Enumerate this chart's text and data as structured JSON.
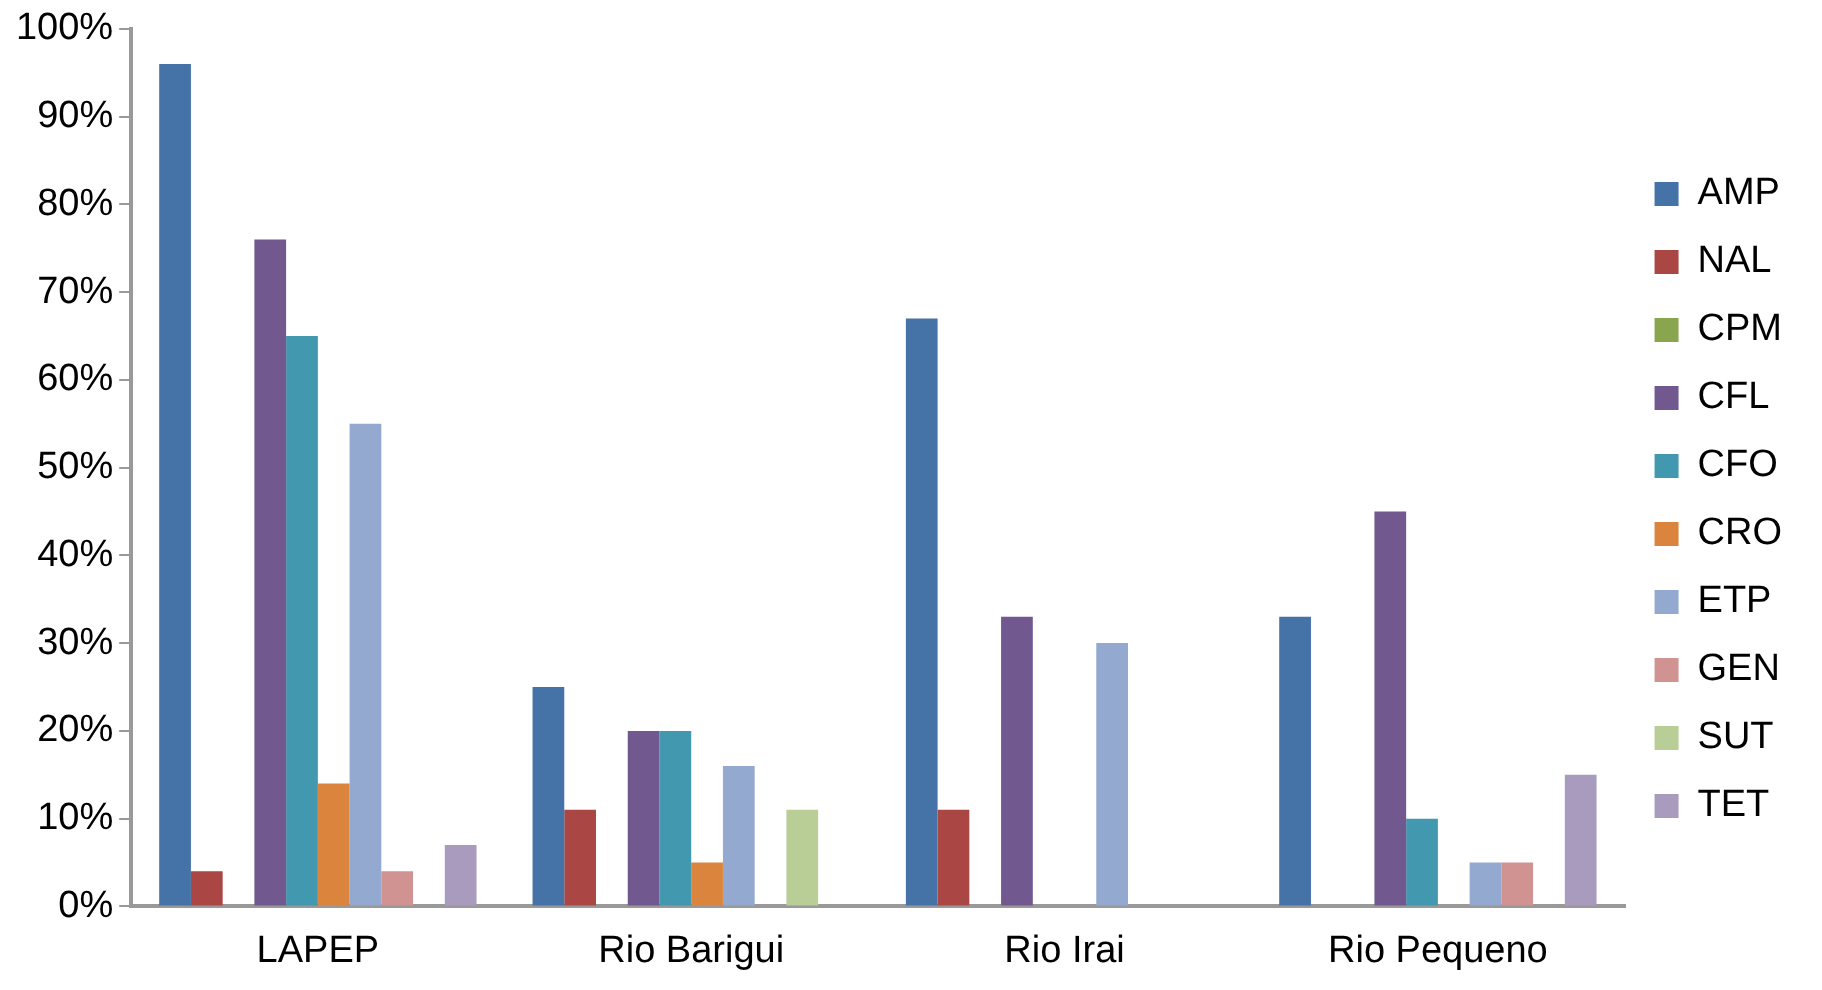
{
  "chart_data": {
    "type": "bar",
    "categories": [
      "LAPEP",
      "Rio Barigui",
      "Rio Irai",
      "Rio Pequeno"
    ],
    "series": [
      {
        "name": "AMP",
        "color": "#4572a7",
        "values": [
          96,
          25,
          67,
          33
        ]
      },
      {
        "name": "NAL",
        "color": "#aa4643",
        "values": [
          4,
          11,
          11,
          0
        ]
      },
      {
        "name": "CPM",
        "color": "#89a54e",
        "values": [
          0,
          0,
          0,
          0
        ]
      },
      {
        "name": "CFL",
        "color": "#71588f",
        "values": [
          76,
          20,
          33,
          45
        ]
      },
      {
        "name": "CFO",
        "color": "#4198af",
        "values": [
          65,
          20,
          0,
          10
        ]
      },
      {
        "name": "CRO",
        "color": "#db843d",
        "values": [
          14,
          5,
          0,
          0
        ]
      },
      {
        "name": "ETP",
        "color": "#93a9cf",
        "values": [
          55,
          16,
          30,
          5
        ]
      },
      {
        "name": "GEN",
        "color": "#d19392",
        "values": [
          4,
          0,
          0,
          5
        ]
      },
      {
        "name": "SUT",
        "color": "#b9cd96",
        "values": [
          0,
          11,
          0,
          0
        ]
      },
      {
        "name": "TET",
        "color": "#a99bbd",
        "values": [
          7,
          0,
          0,
          15
        ]
      }
    ],
    "ylim": [
      0,
      100
    ],
    "yticks": [
      {
        "value": 0,
        "label": "0%"
      },
      {
        "value": 10,
        "label": "10%"
      },
      {
        "value": 20,
        "label": "20%"
      },
      {
        "value": 30,
        "label": "30%"
      },
      {
        "value": 40,
        "label": "40%"
      },
      {
        "value": 50,
        "label": "50%"
      },
      {
        "value": 60,
        "label": "60%"
      },
      {
        "value": 70,
        "label": "70%"
      },
      {
        "value": 80,
        "label": "80%"
      },
      {
        "value": 90,
        "label": "90%"
      },
      {
        "value": 100,
        "label": "100%"
      }
    ],
    "grid": false,
    "legend": "right"
  }
}
